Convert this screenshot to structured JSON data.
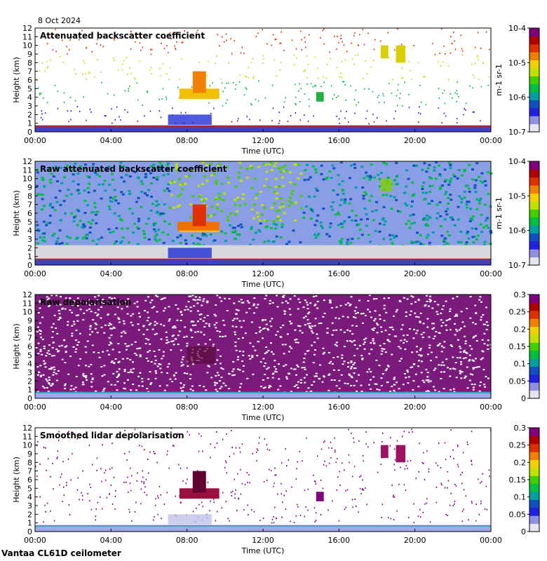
{
  "header": {
    "date": "8 Oct 2024"
  },
  "footer": {
    "station": "Vantaa CL61D ceilometer"
  },
  "colorscale": [
    "#e6e6f0",
    "#9090e0",
    "#2020e0",
    "#1050c0",
    "#00a0a0",
    "#00c040",
    "#40d000",
    "#c0e000",
    "#f0d000",
    "#f08000",
    "#e03000",
    "#b00000",
    "#800080"
  ],
  "chart_data": [
    {
      "type": "heatmap",
      "title": "Attenuated backscatter coefficient",
      "xlabel": "Time (UTC)",
      "ylabel": "Height (km)",
      "x_ticks": [
        "00:00",
        "04:00",
        "08:00",
        "12:00",
        "16:00",
        "20:00",
        "00:00"
      ],
      "xlim_hours": [
        0,
        24
      ],
      "ylim": [
        0,
        12
      ],
      "y_ticks": [
        0,
        1,
        2,
        3,
        4,
        5,
        6,
        7,
        8,
        9,
        10,
        11,
        12
      ],
      "colorbar": {
        "scale": "log",
        "range": [
          1e-07,
          0.0001
        ],
        "ticks": [
          "10-7",
          "10-6",
          "10-5",
          "10-4"
        ],
        "label": "m-1 sr-1"
      }
    },
    {
      "type": "heatmap",
      "title": "Raw attenuated backscatter coefficient",
      "xlabel": "Time (UTC)",
      "ylabel": "Height (km)",
      "x_ticks": [
        "00:00",
        "04:00",
        "08:00",
        "12:00",
        "16:00",
        "20:00",
        "00:00"
      ],
      "xlim_hours": [
        0,
        24
      ],
      "ylim": [
        0,
        12
      ],
      "y_ticks": [
        0,
        1,
        2,
        3,
        4,
        5,
        6,
        7,
        8,
        9,
        10,
        11,
        12
      ],
      "colorbar": {
        "scale": "log",
        "range": [
          1e-07,
          0.0001
        ],
        "ticks": [
          "10-7",
          "10-6",
          "10-5",
          "10-4"
        ],
        "label": "m-1 sr-1"
      }
    },
    {
      "type": "heatmap",
      "title": "Raw depolarisation",
      "xlabel": "Time (UTC)",
      "ylabel": "Height (km)",
      "x_ticks": [
        "00:00",
        "04:00",
        "08:00",
        "12:00",
        "16:00",
        "20:00",
        "00:00"
      ],
      "xlim_hours": [
        0,
        24
      ],
      "ylim": [
        0,
        12
      ],
      "y_ticks": [
        0,
        1,
        2,
        3,
        4,
        5,
        6,
        7,
        8,
        9,
        10,
        11,
        12
      ],
      "colorbar": {
        "scale": "linear",
        "range": [
          0,
          0.3
        ],
        "ticks": [
          "0",
          "0.05",
          "0.1",
          "0.15",
          "0.2",
          "0.25",
          "0.3"
        ],
        "label": ""
      }
    },
    {
      "type": "heatmap",
      "title": "Smoothed lidar depolarisation",
      "xlabel": "Time (UTC)",
      "ylabel": "Height (km)",
      "x_ticks": [
        "00:00",
        "04:00",
        "08:00",
        "12:00",
        "16:00",
        "20:00",
        "00:00"
      ],
      "xlim_hours": [
        0,
        24
      ],
      "ylim": [
        0,
        12
      ],
      "y_ticks": [
        0,
        1,
        2,
        3,
        4,
        5,
        6,
        7,
        8,
        9,
        10,
        11,
        12
      ],
      "colorbar": {
        "scale": "linear",
        "range": [
          0,
          0.3
        ],
        "ticks": [
          "0",
          "0.05",
          "0.1",
          "0.15",
          "0.2",
          "0.25",
          "0.3"
        ],
        "label": ""
      }
    }
  ]
}
